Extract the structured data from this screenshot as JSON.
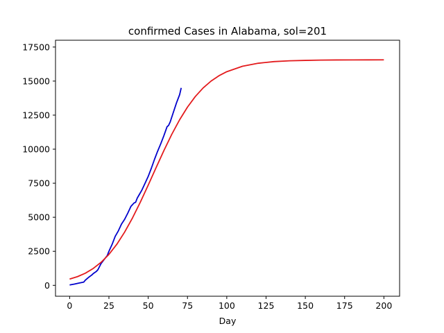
{
  "chart_data": {
    "type": "line",
    "title": "confirmed Cases in Alabama, sol=201",
    "xlabel": "Day",
    "ylabel": "",
    "xlim": [
      -9,
      210
    ],
    "ylim": [
      -800,
      18000
    ],
    "xticks": [
      0,
      25,
      50,
      75,
      100,
      125,
      150,
      175,
      200
    ],
    "yticks": [
      0,
      2500,
      5000,
      7500,
      10000,
      12500,
      15000,
      17500
    ],
    "grid": false,
    "series": [
      {
        "role": "observed",
        "color": "#0000cc",
        "x": [
          0,
          3,
          6,
          9,
          10,
          12,
          14,
          15,
          17,
          18,
          20,
          22,
          24,
          25,
          27,
          29,
          31,
          33,
          35,
          37,
          39,
          41,
          42,
          43,
          44,
          46,
          48,
          50,
          52,
          54,
          56,
          58,
          60,
          62,
          63,
          64,
          66,
          68,
          70,
          71
        ],
        "y": [
          30,
          90,
          170,
          240,
          380,
          580,
          750,
          860,
          1020,
          1150,
          1600,
          1900,
          2200,
          2500,
          3000,
          3600,
          4000,
          4500,
          4850,
          5300,
          5800,
          6050,
          6100,
          6400,
          6600,
          7000,
          7500,
          8000,
          8600,
          9250,
          9850,
          10400,
          11000,
          11650,
          11750,
          12000,
          12700,
          13400,
          14000,
          14500
        ]
      },
      {
        "role": "fit",
        "color": "#e31a1c",
        "x": [
          0,
          5,
          10,
          15,
          20,
          25,
          30,
          35,
          40,
          45,
          50,
          55,
          60,
          65,
          70,
          75,
          80,
          85,
          90,
          95,
          100,
          110,
          120,
          130,
          140,
          150,
          160,
          170,
          180,
          190,
          200
        ],
        "y": [
          460,
          640,
          890,
          1240,
          1690,
          2270,
          3010,
          3910,
          4950,
          6110,
          7360,
          8640,
          9900,
          11090,
          12160,
          13090,
          13870,
          14500,
          15000,
          15390,
          15690,
          16090,
          16310,
          16430,
          16490,
          16520,
          16540,
          16550,
          16555,
          16558,
          16560
        ]
      }
    ]
  }
}
